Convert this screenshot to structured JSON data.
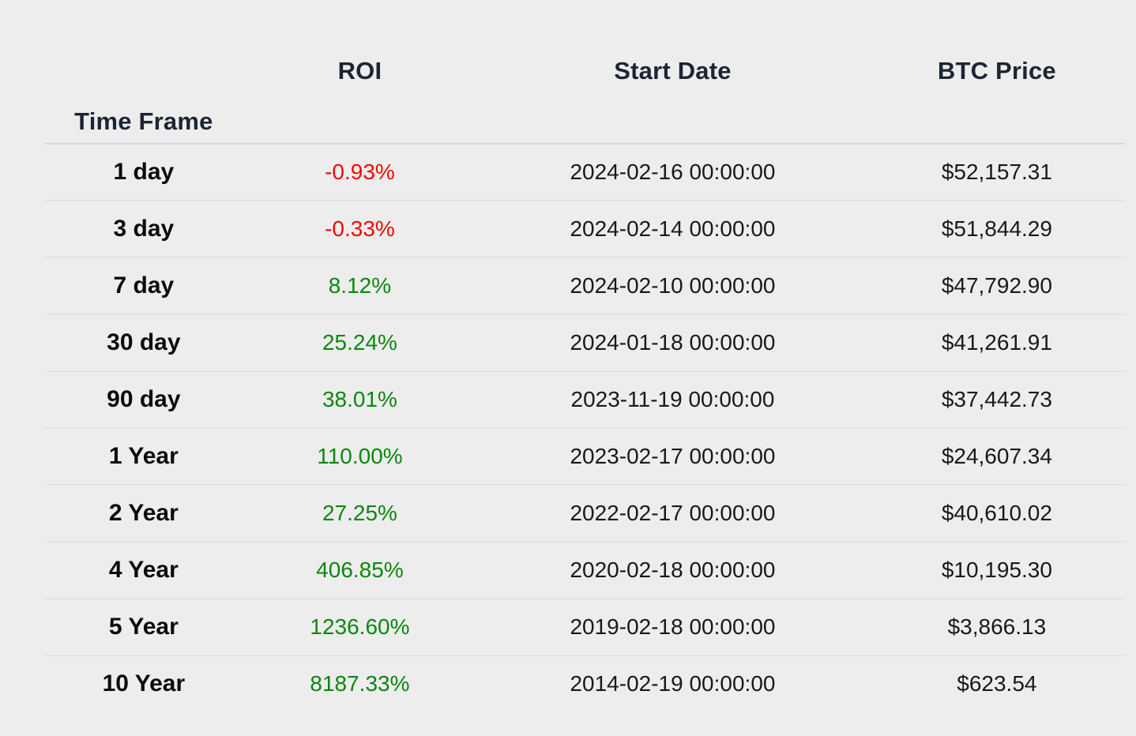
{
  "page": {
    "background": "#ededee"
  },
  "colors": {
    "roi_negative": "#f70505",
    "roi_positive": "#0c870c",
    "header_text": "#1d2533",
    "cell_text": "#19191c",
    "timeframe_text": "#0b0b0b"
  },
  "table": {
    "headers": {
      "time_frame": "Time Frame",
      "roi": "ROI",
      "start_date": "Start Date",
      "btc_price": "BTC Price"
    },
    "rows": [
      {
        "time_frame": "1 day",
        "roi": "-0.93%",
        "roi_trend": "down",
        "start_date": "2024-02-16 00:00:00",
        "btc_price": "$52,157.31"
      },
      {
        "time_frame": "3 day",
        "roi": "-0.33%",
        "roi_trend": "down",
        "start_date": "2024-02-14 00:00:00",
        "btc_price": "$51,844.29"
      },
      {
        "time_frame": "7 day",
        "roi": "8.12%",
        "roi_trend": "up",
        "start_date": "2024-02-10 00:00:00",
        "btc_price": "$47,792.90"
      },
      {
        "time_frame": "30 day",
        "roi": "25.24%",
        "roi_trend": "up",
        "start_date": "2024-01-18 00:00:00",
        "btc_price": "$41,261.91"
      },
      {
        "time_frame": "90 day",
        "roi": "38.01%",
        "roi_trend": "up",
        "start_date": "2023-11-19 00:00:00",
        "btc_price": "$37,442.73"
      },
      {
        "time_frame": "1 Year",
        "roi": "110.00%",
        "roi_trend": "up",
        "start_date": "2023-02-17 00:00:00",
        "btc_price": "$24,607.34"
      },
      {
        "time_frame": "2 Year",
        "roi": "27.25%",
        "roi_trend": "up",
        "start_date": "2022-02-17 00:00:00",
        "btc_price": "$40,610.02"
      },
      {
        "time_frame": "4 Year",
        "roi": "406.85%",
        "roi_trend": "up",
        "start_date": "2020-02-18 00:00:00",
        "btc_price": "$10,195.30"
      },
      {
        "time_frame": "5 Year",
        "roi": "1236.60%",
        "roi_trend": "up",
        "start_date": "2019-02-18 00:00:00",
        "btc_price": "$3,866.13"
      },
      {
        "time_frame": "10 Year",
        "roi": "8187.33%",
        "roi_trend": "up",
        "start_date": "2014-02-19 00:00:00",
        "btc_price": "$623.54"
      }
    ]
  },
  "chart_data": {
    "type": "table",
    "columns": [
      "Time Frame",
      "ROI",
      "Start Date",
      "BTC Price"
    ],
    "rows": [
      [
        "1 day",
        "-0.93%",
        "2024-02-16 00:00:00",
        "$52,157.31"
      ],
      [
        "3 day",
        "-0.33%",
        "2024-02-14 00:00:00",
        "$51,844.29"
      ],
      [
        "7 day",
        "8.12%",
        "2024-02-10 00:00:00",
        "$47,792.90"
      ],
      [
        "30 day",
        "25.24%",
        "2024-01-18 00:00:00",
        "$41,261.91"
      ],
      [
        "90 day",
        "38.01%",
        "2023-11-19 00:00:00",
        "$37,442.73"
      ],
      [
        "1 Year",
        "110.00%",
        "2023-02-17 00:00:00",
        "$24,607.34"
      ],
      [
        "2 Year",
        "27.25%",
        "2022-02-17 00:00:00",
        "$40,610.02"
      ],
      [
        "4 Year",
        "406.85%",
        "2020-02-18 00:00:00",
        "$10,195.30"
      ],
      [
        "5 Year",
        "1236.60%",
        "2019-02-18 00:00:00",
        "$3,866.13"
      ],
      [
        "10 Year",
        "8187.33%",
        "2014-02-19 00:00:00",
        "$623.54"
      ]
    ],
    "roi_percent": [
      -0.93,
      -0.33,
      8.12,
      25.24,
      38.01,
      110.0,
      27.25,
      406.85,
      1236.6,
      8187.33
    ],
    "btc_price_usd": [
      52157.31,
      51844.29,
      47792.9,
      41261.91,
      37442.73,
      24607.34,
      40610.02,
      10195.3,
      3866.13,
      623.54
    ]
  }
}
